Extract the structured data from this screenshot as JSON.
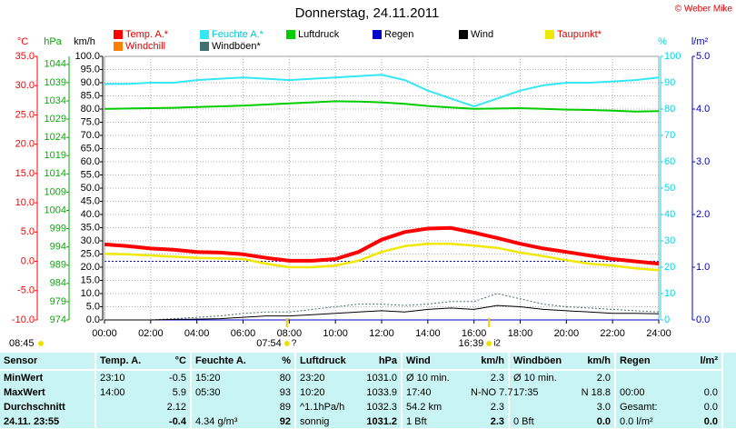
{
  "chart_data": {
    "type": "line",
    "title": "Donnerstag, 24.11.2011",
    "copyright": "© Weber Mike",
    "grid": true,
    "xlim": [
      0,
      24
    ],
    "xticks": [
      {
        "value": 0,
        "label": "00:00"
      },
      {
        "value": 2,
        "label": "02:00"
      },
      {
        "value": 4,
        "label": "04:00"
      },
      {
        "value": 6,
        "label": "06:00"
      },
      {
        "value": 8,
        "label": "08:00"
      },
      {
        "value": 10,
        "label": "10:00"
      },
      {
        "value": 12,
        "label": "12:00"
      },
      {
        "value": 14,
        "label": "14:00"
      },
      {
        "value": 16,
        "label": "16:00"
      },
      {
        "value": 18,
        "label": "18:00"
      },
      {
        "value": 20,
        "label": "20:00"
      },
      {
        "value": 22,
        "label": "22:00"
      },
      {
        "value": 24,
        "label": "24:00"
      }
    ],
    "axes": [
      {
        "label": "°C",
        "color": "#ff0000",
        "ylim": [
          -10,
          35
        ],
        "yticks": [
          {
            "value": -10,
            "label": "-10.0"
          },
          {
            "value": -5,
            "label": "-5.0"
          },
          {
            "value": 0,
            "label": "0.0"
          },
          {
            "value": 5,
            "label": "5.0"
          },
          {
            "value": 10,
            "label": "10.0"
          },
          {
            "value": 15,
            "label": "15.0"
          },
          {
            "value": 20,
            "label": "20.0"
          },
          {
            "value": 25,
            "label": "25.0"
          },
          {
            "value": 30,
            "label": "30.0"
          },
          {
            "value": 35,
            "label": "35.0"
          }
        ]
      },
      {
        "label": "hPa",
        "color": "#00b000",
        "ylim": [
          974,
          1046.2
        ],
        "yticks": [
          974,
          979,
          984,
          989,
          994,
          999,
          1004,
          1009,
          1014,
          1019,
          1024,
          1029,
          1034,
          1039,
          1044
        ]
      },
      {
        "label": "km/h",
        "color": "#000000",
        "ylim": [
          0,
          100
        ],
        "yticks": [
          {
            "value": 0,
            "label": "0.0"
          },
          {
            "value": 5,
            "label": "5.0"
          },
          {
            "value": 10,
            "label": "10.0"
          },
          {
            "value": 15,
            "label": "15.0"
          },
          {
            "value": 20,
            "label": "20.0"
          },
          {
            "value": 25,
            "label": "25.0"
          },
          {
            "value": 30,
            "label": "30.0"
          },
          {
            "value": 35,
            "label": "35.0"
          },
          {
            "value": 40,
            "label": "40.0"
          },
          {
            "value": 45,
            "label": "45.0"
          },
          {
            "value": 50,
            "label": "50.0"
          },
          {
            "value": 55,
            "label": "55.0"
          },
          {
            "value": 60,
            "label": "60.0"
          },
          {
            "value": 65,
            "label": "65.0"
          },
          {
            "value": 70,
            "label": "70.0"
          },
          {
            "value": 75,
            "label": "75.0"
          },
          {
            "value": 80,
            "label": "80.0"
          },
          {
            "value": 85,
            "label": "85.0"
          },
          {
            "value": 90,
            "label": "90.0"
          },
          {
            "value": 95,
            "label": "95.0"
          },
          {
            "value": 100,
            "label": "100.0"
          }
        ]
      },
      {
        "label": "%",
        "color": "#00d8e8",
        "ylim": [
          0,
          100
        ],
        "yticks": [
          0,
          10,
          20,
          30,
          40,
          50,
          60,
          70,
          80,
          90,
          100
        ]
      },
      {
        "label": "l/m²",
        "color": "#0000c0",
        "ylim": [
          0,
          5
        ],
        "yticks": [
          {
            "value": 0,
            "label": "0.0"
          },
          {
            "value": 1,
            "label": "1.0"
          },
          {
            "value": 2,
            "label": "2.0"
          },
          {
            "value": 3,
            "label": "3.0"
          },
          {
            "value": 4,
            "label": "4.0"
          },
          {
            "value": 5,
            "label": "5.0"
          }
        ]
      }
    ],
    "x": [
      0,
      1,
      2,
      3,
      4,
      5,
      6,
      7,
      8,
      9,
      10,
      11,
      12,
      13,
      14,
      15,
      16,
      17,
      18,
      19,
      20,
      21,
      22,
      23,
      24
    ],
    "series": [
      {
        "name": "Temp. A.*",
        "color": "#ff0000",
        "axis": 0,
        "values": [
          2.9,
          2.6,
          2.2,
          2.0,
          1.6,
          1.5,
          1.2,
          0.6,
          0.1,
          0.1,
          0.4,
          1.6,
          3.7,
          5.0,
          5.6,
          5.7,
          4.9,
          4.0,
          3.0,
          2.2,
          1.6,
          1.0,
          0.4,
          0.0,
          -0.4
        ]
      },
      {
        "name": "Feuchte A.*",
        "color": "#33e8f4",
        "axis": 3,
        "values": [
          89.5,
          89.5,
          90,
          90,
          91,
          91.5,
          92,
          91.5,
          91,
          91.5,
          92,
          92.5,
          93,
          91,
          87,
          84,
          81,
          84,
          87,
          89,
          90,
          90,
          90.5,
          91,
          92
        ]
      },
      {
        "name": "Luftdruck",
        "color": "#00cc00",
        "axis": 1,
        "values": [
          1031.8,
          1031.9,
          1032.0,
          1032.1,
          1032.3,
          1032.5,
          1032.7,
          1033.0,
          1033.3,
          1033.6,
          1033.9,
          1033.8,
          1033.6,
          1033.2,
          1032.6,
          1032.2,
          1031.8,
          1031.9,
          1032.0,
          1031.8,
          1031.6,
          1031.5,
          1031.3,
          1031.1,
          1031.2
        ]
      },
      {
        "name": "Regen",
        "color": "#0000cc",
        "axis": 4,
        "values": [
          0,
          0,
          0,
          0,
          0,
          0,
          0,
          0,
          0,
          0,
          0,
          0,
          0,
          0,
          0,
          0,
          0,
          0,
          0,
          0,
          0,
          0,
          0,
          0,
          0
        ]
      },
      {
        "name": "Wind",
        "color": "#000000",
        "axis": 2,
        "values": [
          0,
          0,
          0,
          0.2,
          0.3,
          0.5,
          1.0,
          1.5,
          1.5,
          2.0,
          2.5,
          3.0,
          3.5,
          3.0,
          4.0,
          4.5,
          4.0,
          5.5,
          5.0,
          4.0,
          3.5,
          3.0,
          2.5,
          2.5,
          2.3
        ]
      },
      {
        "name": "Taupunkt*",
        "color": "#f0e800",
        "axis": 0,
        "values": [
          1.3,
          1.2,
          1.0,
          0.8,
          0.6,
          0.5,
          0.4,
          -0.4,
          -1.0,
          -1.0,
          -0.7,
          0.1,
          1.6,
          2.6,
          3.0,
          3.0,
          2.7,
          2.3,
          1.5,
          0.9,
          0.2,
          -0.4,
          -0.7,
          -1.2,
          -1.5
        ]
      },
      {
        "name": "Windchill",
        "color": "#ff8000",
        "axis": 0,
        "values": [
          2.9,
          2.6,
          2.2,
          2.0,
          1.6,
          1.5,
          1.2,
          0.6,
          0.1,
          0.1,
          0.4,
          1.6,
          3.7,
          5.0,
          5.6,
          5.7,
          4.9,
          4.0,
          3.0,
          2.2,
          1.6,
          1.0,
          0.4,
          0.0,
          -0.4
        ]
      },
      {
        "name": "Windböen*",
        "color": "#407070",
        "axis": 2,
        "values": [
          0,
          0,
          0,
          0.5,
          1,
          1.5,
          2.5,
          3,
          3,
          4,
          5,
          6,
          6,
          5.5,
          6,
          7,
          7,
          10,
          8,
          6,
          5,
          4.5,
          4,
          3.5,
          3
        ]
      }
    ],
    "moon": "08:45",
    "sun_marks": [
      {
        "value": 7.9,
        "label": "07:54",
        "note": "?"
      },
      {
        "value": 16.65,
        "label": "16:39",
        "note": "i2"
      }
    ]
  },
  "table": {
    "header": [
      "Sensor",
      "Temp. A.",
      "°C",
      "Feuchte A.",
      "%",
      "Luftdruck",
      "hPa",
      "Wind",
      "km/h",
      "Windböen",
      "km/h",
      "Regen",
      "l/m²"
    ],
    "rows": [
      [
        "MinWert",
        "23:10",
        "-0.5",
        "15:20",
        "80",
        "23:20",
        "1031.0",
        "Ø 10 min.",
        "2.3",
        "Ø 10 min.",
        "2.0",
        null,
        null
      ],
      [
        "MaxWert",
        "14:00",
        "5.9",
        "05:30",
        "93",
        "10:20",
        "1033.9",
        "17:40",
        "N-NO 7.7",
        "17:35",
        "N 18.8",
        "00:00",
        "0.0"
      ],
      [
        "Durchschnitt",
        null,
        "2.12",
        null,
        "89",
        "^1.1hPa/h",
        "1032.3",
        "54.2 km",
        "2.3",
        null,
        "3.0",
        "Gesamt:",
        "0.0"
      ],
      [
        "24.11. 23:55",
        null,
        "-0.4",
        "4.34 g/m³",
        "92",
        "sonnig",
        "1031.2",
        "1 Bft",
        "2.3",
        "0 Bft",
        "0.0",
        "0.0 l/m²",
        "0.0"
      ]
    ]
  }
}
